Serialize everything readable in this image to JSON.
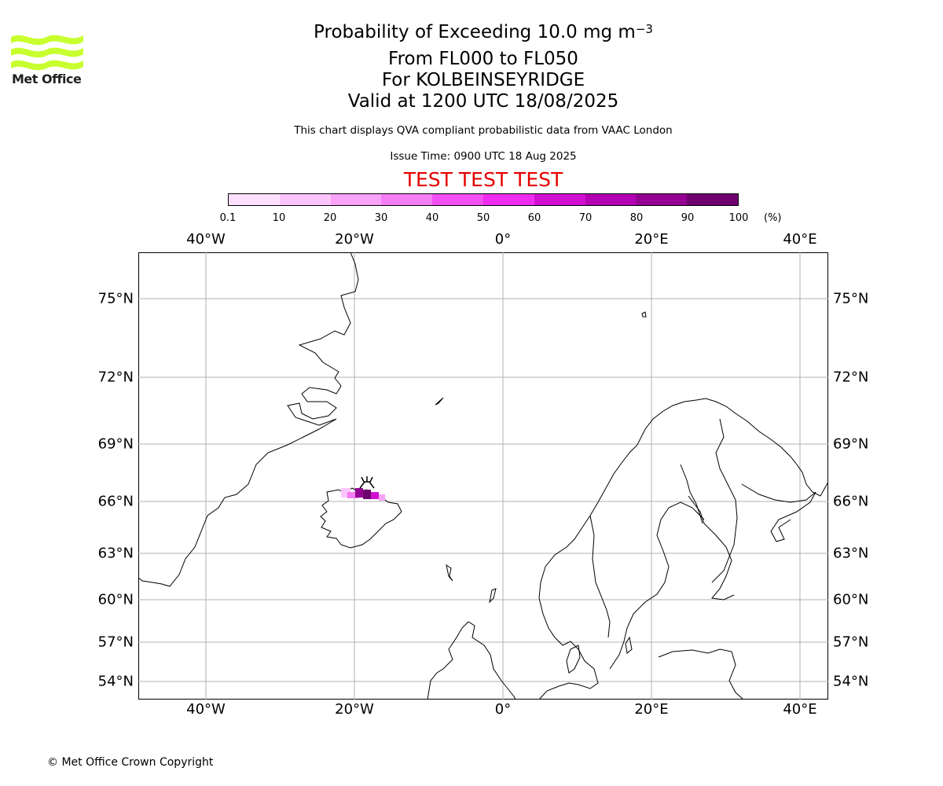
{
  "logo": {
    "text": "Met Office",
    "color": "#c8ff2e"
  },
  "title": {
    "line1": "Probability of Exceeding 10.0 mg m",
    "line1_sup": "−3",
    "line2": "From FL000 to FL050",
    "line3": "For KOLBEINSEYRIDGE",
    "line4": "Valid at 1200 UTC 18/08/2025"
  },
  "subtitle": "This chart displays QVA compliant probabilistic data from VAAC London",
  "issue_time": "Issue Time: 0900 UTC 18 Aug 2025",
  "test_banner": "TEST TEST TEST",
  "colorbar": {
    "ticks": [
      "0.1",
      "10",
      "20",
      "30",
      "40",
      "50",
      "60",
      "70",
      "80",
      "90",
      "100"
    ],
    "unit": "(%)",
    "colors": [
      "#fde0fd",
      "#fbc5fb",
      "#f8a2f8",
      "#f57ef5",
      "#f24ff2",
      "#f02bf0",
      "#d10fd1",
      "#b300b3",
      "#930093",
      "#6e006e"
    ]
  },
  "map": {
    "lon_labels": [
      "40°W",
      "20°W",
      "0°",
      "20°E",
      "40°E"
    ],
    "lat_labels": [
      "75°N",
      "72°N",
      "69°N",
      "66°N",
      "63°N",
      "60°N",
      "57°N",
      "54°N"
    ],
    "volcano_symbol": "volcano-icon"
  },
  "copyright": "© Met Office Crown Copyright"
}
